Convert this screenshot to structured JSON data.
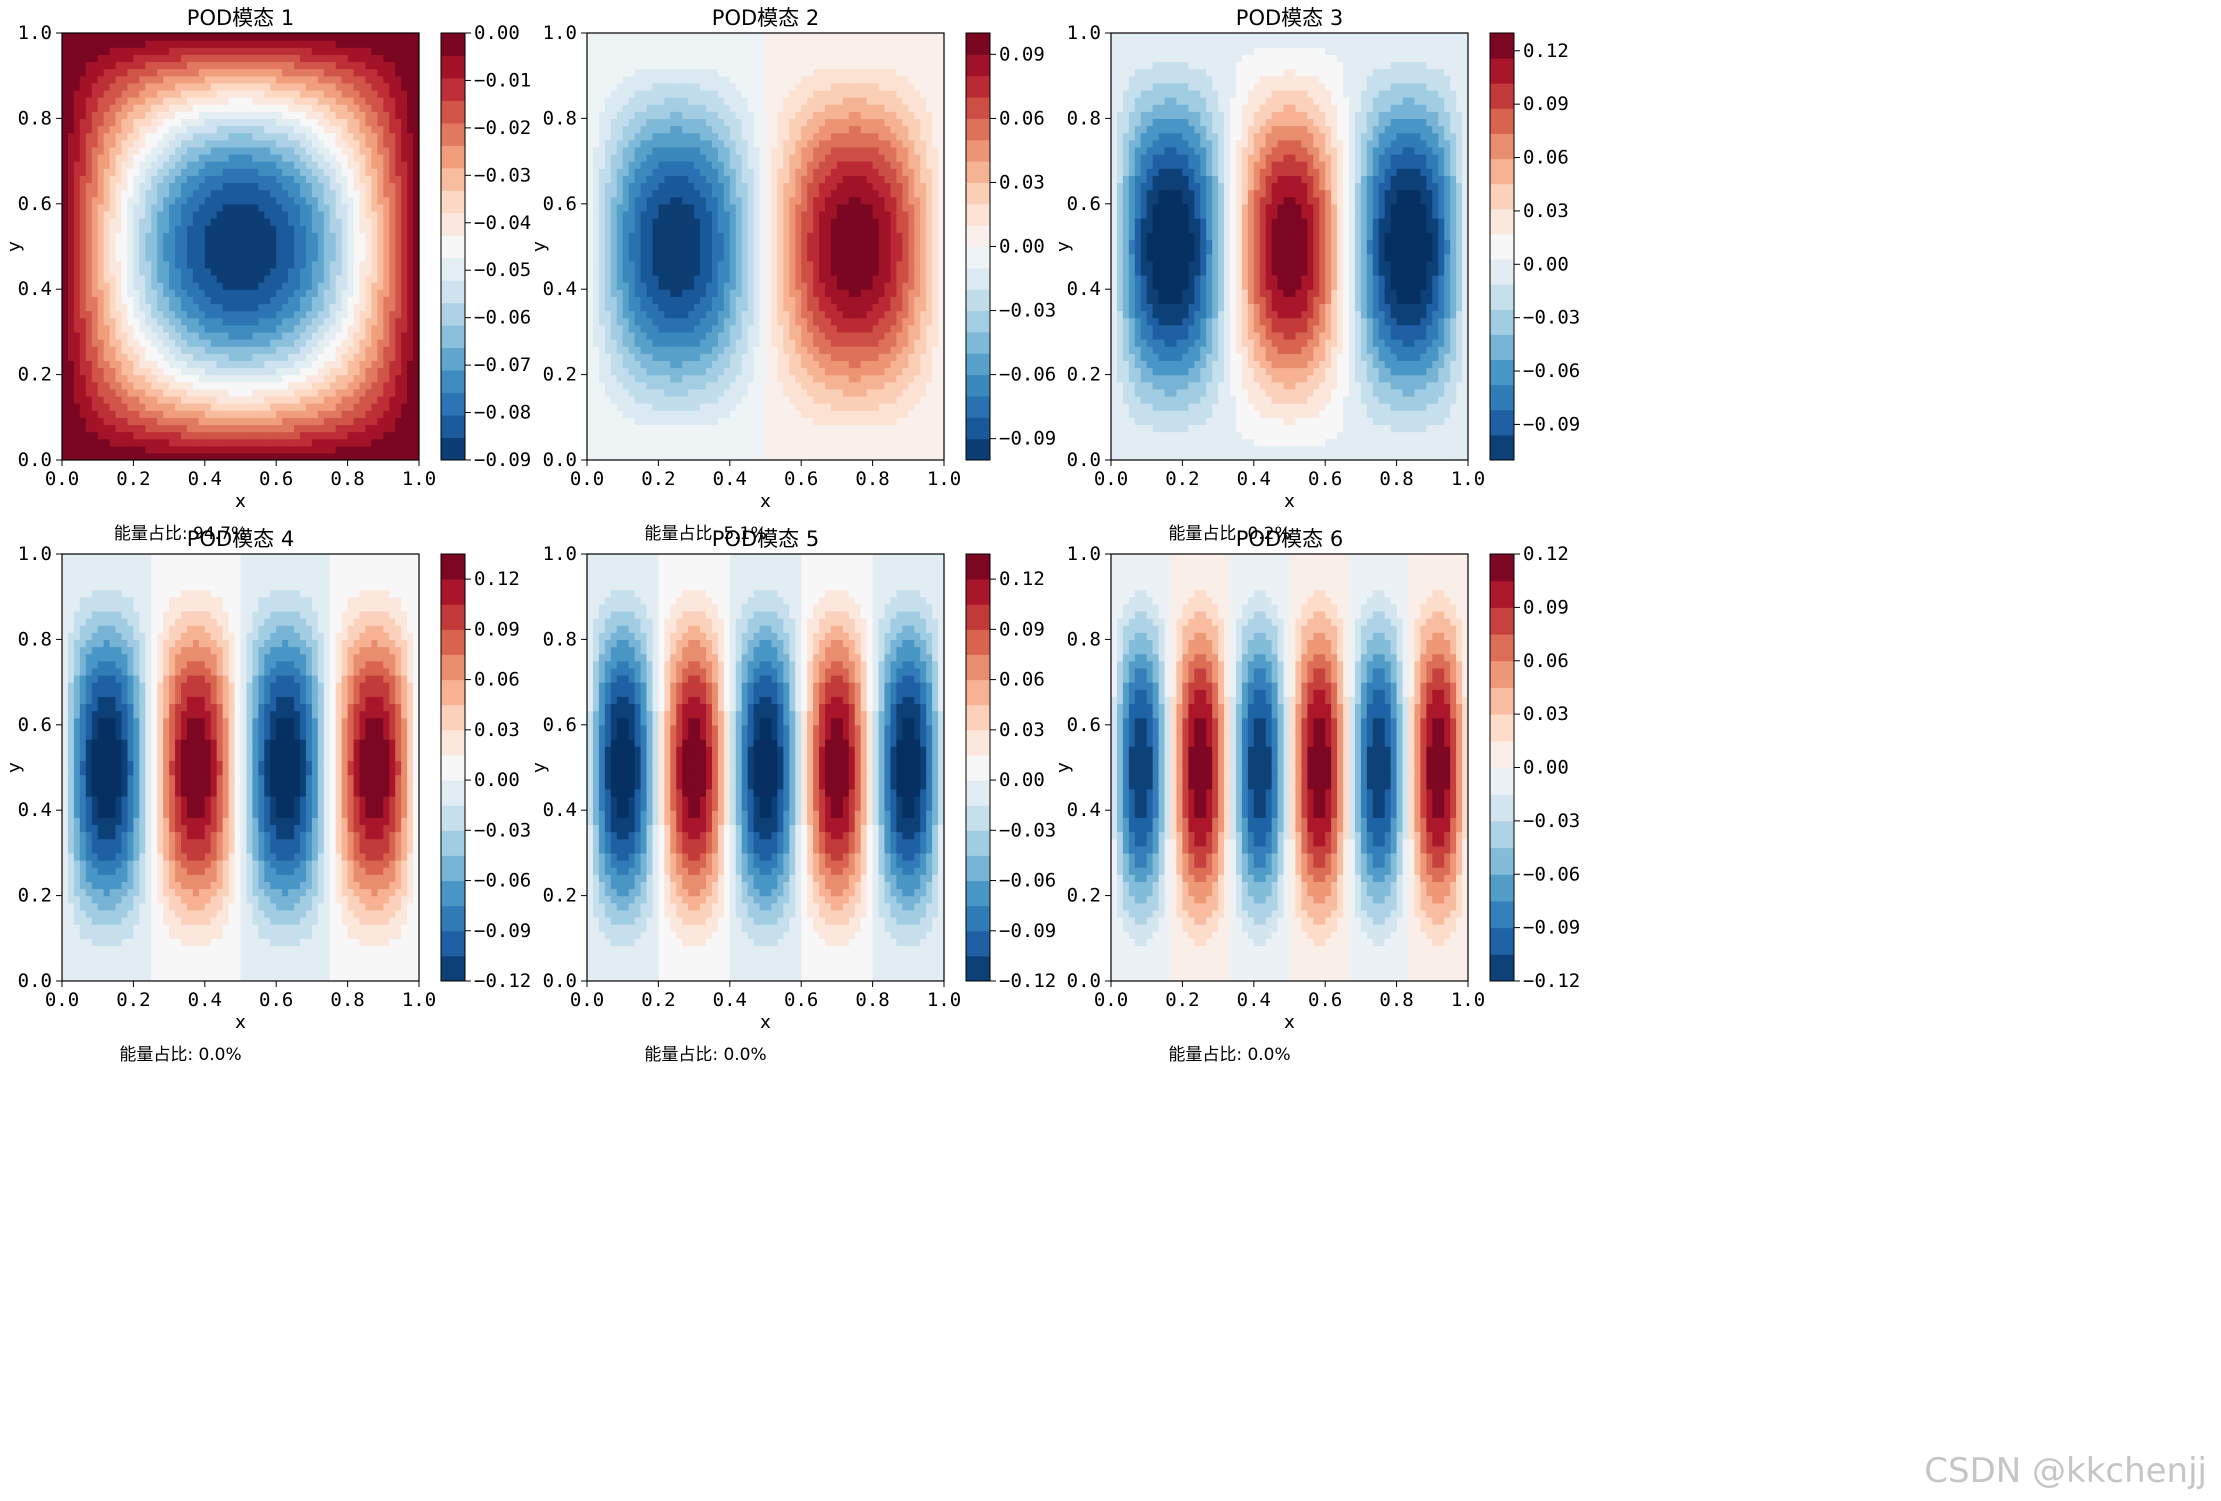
{
  "figure": {
    "watermark": "CSDN @kkchenjj",
    "x_label": "x",
    "y_label": "y",
    "x_ticks": [
      0.0,
      0.2,
      0.4,
      0.6,
      0.8,
      1.0
    ],
    "y_ticks": [
      0.0,
      0.2,
      0.4,
      0.6,
      0.8,
      1.0
    ],
    "colormap": [
      "#053061",
      "#2166ac",
      "#4393c3",
      "#92c5de",
      "#d1e5f0",
      "#f7f7f7",
      "#fddbc7",
      "#f4a582",
      "#d6604d",
      "#b2182b",
      "#67001f"
    ]
  },
  "chart_data": [
    {
      "type": "heatmap",
      "title": "POD模态 1",
      "xlabel": "x",
      "ylabel": "y",
      "xlim": [
        0,
        1
      ],
      "ylim": [
        0,
        1
      ],
      "energy_label": "能量占比: 94.7%",
      "mode": [
        1,
        1
      ],
      "vmin": -0.09,
      "vmax": 0.0,
      "levels": 19,
      "colorbar_ticks": [
        0.0,
        -0.01,
        -0.02,
        -0.03,
        -0.04,
        -0.05,
        -0.06,
        -0.07,
        -0.08,
        -0.09
      ],
      "colorbar_labels": [
        "0.00",
        "−0.01",
        "−0.02",
        "−0.03",
        "−0.04",
        "−0.05",
        "−0.06",
        "−0.07",
        "−0.08",
        "−0.09"
      ]
    },
    {
      "type": "heatmap",
      "title": "POD模态 2",
      "xlabel": "x",
      "ylabel": "y",
      "xlim": [
        0,
        1
      ],
      "ylim": [
        0,
        1
      ],
      "energy_label": "能量占比: 5.1%",
      "mode": [
        2,
        1
      ],
      "vmin": -0.1,
      "vmax": 0.1,
      "levels": 20,
      "colorbar_ticks": [
        0.09,
        0.06,
        0.03,
        0.0,
        -0.03,
        -0.06,
        -0.09
      ],
      "colorbar_labels": [
        "0.09",
        "0.06",
        "0.03",
        "0.00",
        "−0.03",
        "−0.06",
        "−0.09"
      ]
    },
    {
      "type": "heatmap",
      "title": "POD模态 3",
      "xlabel": "x",
      "ylabel": "y",
      "xlim": [
        0,
        1
      ],
      "ylim": [
        0,
        1
      ],
      "energy_label": "能量占比: 0.2%",
      "mode": [
        3,
        1
      ],
      "vmin": -0.11,
      "vmax": 0.13,
      "levels": 17,
      "colorbar_ticks": [
        0.12,
        0.09,
        0.06,
        0.03,
        0.0,
        -0.03,
        -0.06,
        -0.09
      ],
      "colorbar_labels": [
        "0.12",
        "0.09",
        "0.06",
        "0.03",
        "0.00",
        "−0.03",
        "−0.06",
        "−0.09"
      ]
    },
    {
      "type": "heatmap",
      "title": "POD模态 4",
      "xlabel": "x",
      "ylabel": "y",
      "xlim": [
        0,
        1
      ],
      "ylim": [
        0,
        1
      ],
      "energy_label": "能量占比: 0.0%",
      "mode": [
        4,
        1
      ],
      "vmin": -0.12,
      "vmax": 0.135,
      "levels": 17,
      "colorbar_ticks": [
        0.12,
        0.09,
        0.06,
        0.03,
        0.0,
        -0.03,
        -0.06,
        -0.09,
        -0.12
      ],
      "colorbar_labels": [
        "0.12",
        "0.09",
        "0.06",
        "0.03",
        "0.00",
        "−0.03",
        "−0.06",
        "−0.09",
        "−0.12"
      ]
    },
    {
      "type": "heatmap",
      "title": "POD模态 5",
      "xlabel": "x",
      "ylabel": "y",
      "xlim": [
        0,
        1
      ],
      "ylim": [
        0,
        1
      ],
      "energy_label": "能量占比: 0.0%",
      "mode": [
        5,
        1
      ],
      "vmin": -0.12,
      "vmax": 0.135,
      "levels": 17,
      "colorbar_ticks": [
        0.12,
        0.09,
        0.06,
        0.03,
        0.0,
        -0.03,
        -0.06,
        -0.09,
        -0.12
      ],
      "colorbar_labels": [
        "0.12",
        "0.09",
        "0.06",
        "0.03",
        "0.00",
        "−0.03",
        "−0.06",
        "−0.09",
        "−0.12"
      ]
    },
    {
      "type": "heatmap",
      "title": "POD模态 6",
      "xlabel": "x",
      "ylabel": "y",
      "xlim": [
        0,
        1
      ],
      "ylim": [
        0,
        1
      ],
      "energy_label": "能量占比: 0.0%",
      "mode": [
        6,
        1
      ],
      "vmin": -0.12,
      "vmax": 0.12,
      "levels": 16,
      "colorbar_ticks": [
        0.12,
        0.09,
        0.06,
        0.03,
        0.0,
        -0.03,
        -0.06,
        -0.09,
        -0.12
      ],
      "colorbar_labels": [
        "0.12",
        "0.09",
        "0.06",
        "0.03",
        "0.00",
        "−0.03",
        "−0.06",
        "−0.09",
        "−0.12"
      ]
    }
  ]
}
